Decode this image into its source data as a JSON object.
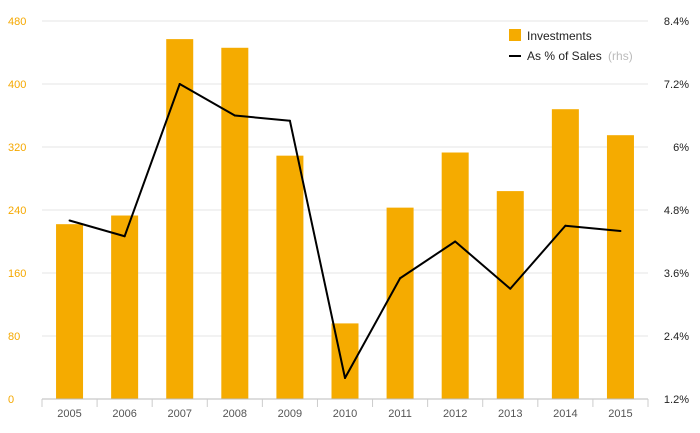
{
  "chart_data": {
    "type": "bar",
    "categories": [
      "2005",
      "2006",
      "2007",
      "2008",
      "2009",
      "2010",
      "2011",
      "2012",
      "2013",
      "2014",
      "2015"
    ],
    "series": [
      {
        "name": "Investments",
        "type": "bar",
        "axis": "left",
        "color": "#f5ab00",
        "values": [
          222,
          233,
          457,
          446,
          309,
          96,
          243,
          313,
          264,
          368,
          335
        ]
      },
      {
        "name": "As % of Sales",
        "name_suffix": "(rhs)",
        "type": "line",
        "axis": "right",
        "color": "#000000",
        "values": [
          4.6,
          4.3,
          7.2,
          6.6,
          6.5,
          1.6,
          3.5,
          4.2,
          3.3,
          4.5,
          4.4
        ]
      }
    ],
    "y_left": {
      "ticks": [
        0,
        80,
        160,
        240,
        320,
        400,
        480
      ],
      "range": [
        0,
        480
      ],
      "color": "#f5a800"
    },
    "y_right": {
      "ticks": [
        "1.2%",
        "2.4%",
        "3.6%",
        "4.8%",
        "6%",
        "7.2%",
        "8.4%"
      ],
      "range": [
        1.2,
        8.4
      ]
    },
    "grid": true,
    "legend": "top-right"
  }
}
